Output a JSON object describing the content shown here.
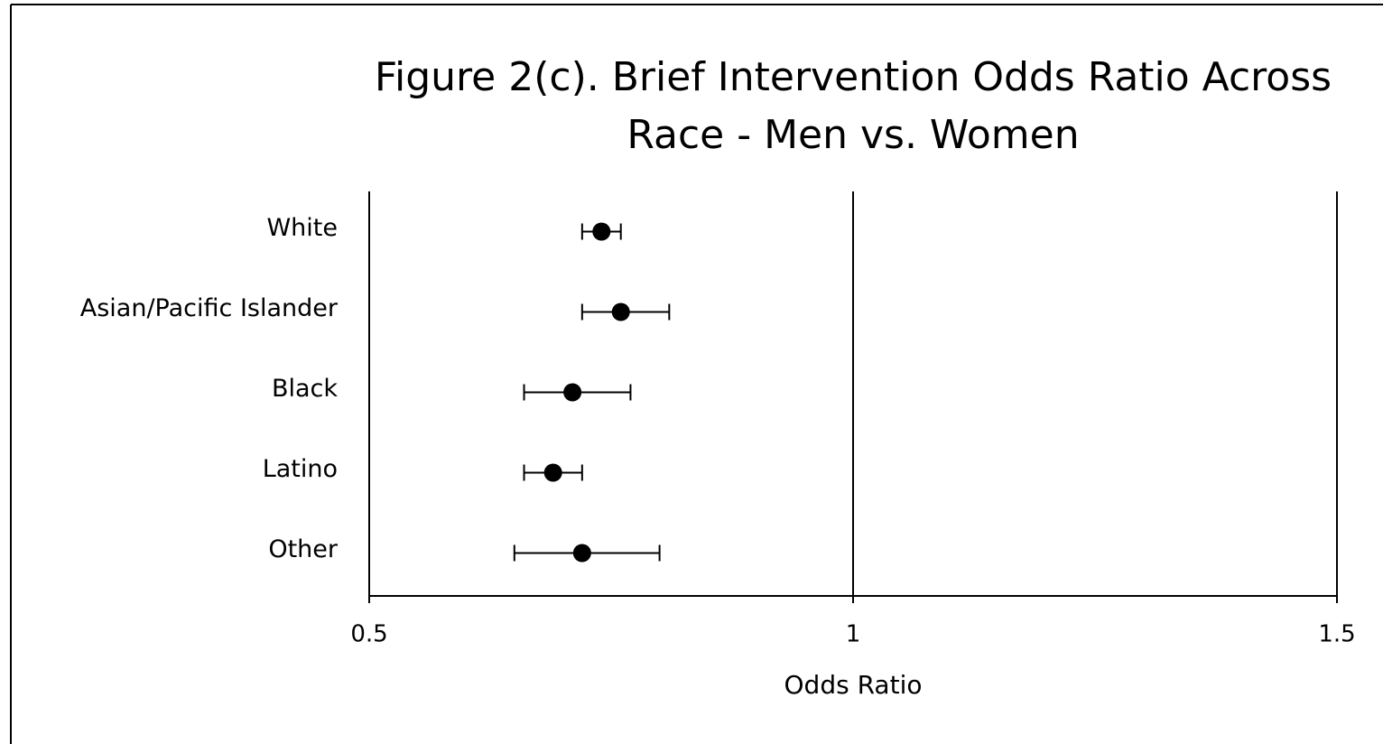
{
  "chart_data": {
    "type": "forest",
    "title": [
      "Figure 2(c). Brief Intervention Odds Ratio Across",
      "Race - Men vs. Women"
    ],
    "x_label": "Odds Ratio",
    "categories": [
      "White",
      "Asian/Pacific Islander",
      "Black",
      "Latino",
      "Other"
    ],
    "values": [
      0.74,
      0.76,
      0.71,
      0.69,
      0.72
    ],
    "lower": [
      0.72,
      0.72,
      0.66,
      0.66,
      0.65
    ],
    "upper": [
      0.76,
      0.81,
      0.77,
      0.72,
      0.8
    ],
    "color": "#000000",
    "xlim": [
      0.5,
      1.5
    ],
    "xticks": [
      0.5,
      1,
      1.5
    ],
    "grid": true
  }
}
